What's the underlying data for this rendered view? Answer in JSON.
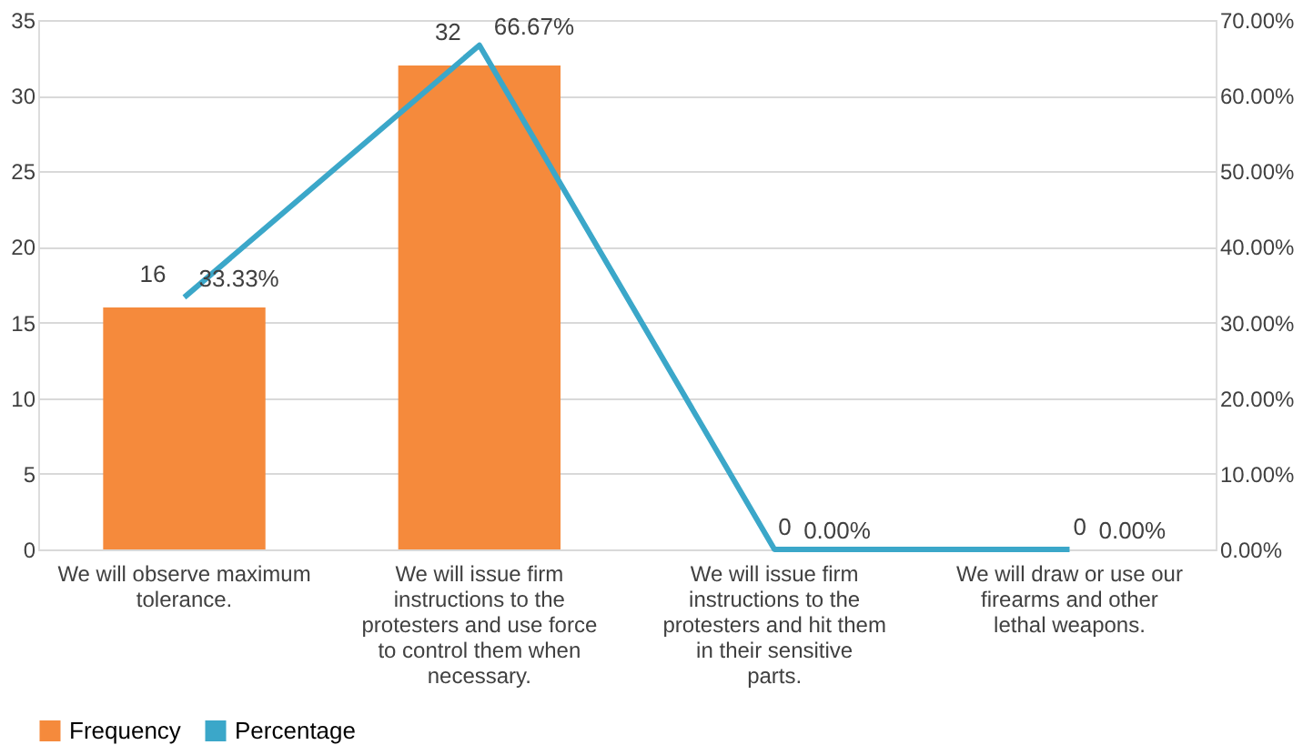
{
  "chart_data": {
    "type": "bar",
    "categories": [
      "We will observe maximum tolerance.",
      "We will issue firm instructions to the protesters and use force to control them when necessary.",
      "We will issue firm instructions to the protesters and hit them in their sensitive parts.",
      "We will draw or use our firearms and other lethal weapons."
    ],
    "series": [
      {
        "name": "Frequency",
        "color": "#f58a3c",
        "values": [
          16,
          32,
          0,
          0
        ],
        "value_labels": [
          "16",
          "32",
          "0",
          "0"
        ]
      },
      {
        "name": "Percentage",
        "type": "line",
        "axis": "y2",
        "color": "#3ba7c9",
        "values": [
          33.33,
          66.67,
          0,
          0
        ],
        "value_labels": [
          "33.33%",
          "66.67%",
          "0.00%",
          "0.00%"
        ]
      }
    ],
    "ylim": [
      0,
      35
    ],
    "yticks": [
      0,
      5,
      10,
      15,
      20,
      25,
      30,
      35
    ],
    "y2lim": [
      0,
      70
    ],
    "y2ticks": [
      {
        "value": 0,
        "label": "0.00%"
      },
      {
        "value": 10,
        "label": "10.00%"
      },
      {
        "value": 20,
        "label": "20.00%"
      },
      {
        "value": 30,
        "label": "30.00%"
      },
      {
        "value": 40,
        "label": "40.00%"
      },
      {
        "value": 50,
        "label": "50.00%"
      },
      {
        "value": 60,
        "label": "60.00%"
      },
      {
        "value": 70,
        "label": "70.00%"
      }
    ],
    "grid": "y",
    "legend": "bottom",
    "marker": "none"
  }
}
